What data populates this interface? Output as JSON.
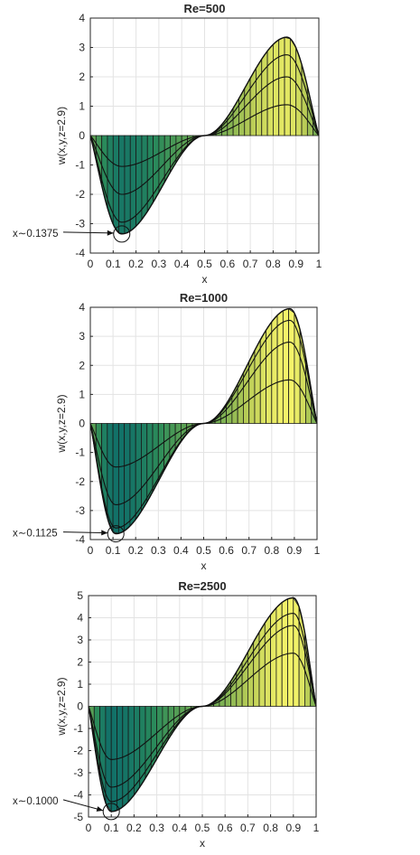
{
  "chart_data": [
    {
      "type": "area",
      "title": "Re=500",
      "xlabel": "x",
      "ylabel": "w(x,y,z=2.9)",
      "xlim": [
        0,
        1
      ],
      "ylim": [
        -4,
        4
      ],
      "xticks": [
        0,
        0.1,
        0.2,
        0.3,
        0.4,
        0.5,
        0.6,
        0.7,
        0.8,
        0.9,
        1
      ],
      "xticklabels": [
        "0",
        "0.1",
        "0.2",
        "0.3",
        "0.4",
        "0.5",
        "0.6",
        "0.7",
        "0.8",
        "0.9",
        "1"
      ],
      "yticks": [
        -4,
        -3,
        -2,
        -1,
        0,
        1,
        2,
        3,
        4
      ],
      "yticklabels": [
        "-4",
        "-3",
        "-2",
        "-1",
        "0",
        "1",
        "2",
        "3",
        "4"
      ],
      "grid": true,
      "min": {
        "x": 0.1375,
        "y": -3.35
      },
      "max": {
        "x": 0.86,
        "y": 3.35
      },
      "series": [
        {
          "values_x": [
            0,
            0.1375,
            0.5,
            0.86,
            1
          ],
          "values_y": [
            0,
            -3.35,
            0,
            3.35,
            0
          ]
        },
        {
          "values_x": [
            0,
            0.1375,
            0.5,
            0.86,
            1
          ],
          "values_y": [
            0,
            -2.95,
            0,
            2.75,
            0
          ]
        },
        {
          "values_x": [
            0,
            0.1375,
            0.5,
            0.86,
            1
          ],
          "values_y": [
            0,
            -2.0,
            0,
            2.0,
            0
          ]
        },
        {
          "values_x": [
            0,
            0.1375,
            0.5,
            0.86,
            1
          ],
          "values_y": [
            0,
            -1.05,
            0,
            1.05,
            0
          ]
        }
      ],
      "annotation": "x∼0.1375"
    },
    {
      "type": "area",
      "title": "Re=1000",
      "xlabel": "x",
      "ylabel": "w(x,y,z=2.9)",
      "xlim": [
        0,
        1
      ],
      "ylim": [
        -4,
        4
      ],
      "xticks": [
        0,
        0.1,
        0.2,
        0.3,
        0.4,
        0.5,
        0.6,
        0.7,
        0.8,
        0.9,
        1
      ],
      "xticklabels": [
        "0",
        "0.1",
        "0.2",
        "0.3",
        "0.4",
        "0.5",
        "0.6",
        "0.7",
        "0.8",
        "0.9",
        "1"
      ],
      "yticks": [
        -4,
        -3,
        -2,
        -1,
        0,
        1,
        2,
        3,
        4
      ],
      "yticklabels": [
        "-4",
        "-3",
        "-2",
        "-1",
        "0",
        "1",
        "2",
        "3",
        "4"
      ],
      "grid": true,
      "min": {
        "x": 0.1125,
        "y": -3.8
      },
      "max": {
        "x": 0.88,
        "y": 3.95
      },
      "series": [
        {
          "values_x": [
            0,
            0.1125,
            0.5,
            0.88,
            1
          ],
          "values_y": [
            0,
            -3.8,
            0,
            3.95,
            0
          ]
        },
        {
          "values_x": [
            0,
            0.1125,
            0.5,
            0.88,
            1
          ],
          "values_y": [
            0,
            -3.6,
            0,
            3.55,
            0
          ]
        },
        {
          "values_x": [
            0,
            0.1125,
            0.5,
            0.88,
            1
          ],
          "values_y": [
            0,
            -2.8,
            0,
            2.8,
            0
          ]
        },
        {
          "values_x": [
            0,
            0.1125,
            0.5,
            0.88,
            1
          ],
          "values_y": [
            0,
            -1.5,
            0,
            1.5,
            0
          ]
        }
      ],
      "annotation": "x∼0.1125"
    },
    {
      "type": "area",
      "title": "Re=2500",
      "xlabel": "x",
      "ylabel": "w(x,y,z=2.9)",
      "xlim": [
        0,
        1
      ],
      "ylim": [
        -5,
        5
      ],
      "xticks": [
        0,
        0.1,
        0.2,
        0.3,
        0.4,
        0.5,
        0.6,
        0.7,
        0.8,
        0.9,
        1
      ],
      "xticklabels": [
        "0",
        "0.1",
        "0.2",
        "0.3",
        "0.4",
        "0.5",
        "0.6",
        "0.7",
        "0.8",
        "0.9",
        "1"
      ],
      "yticks": [
        -5,
        -4,
        -3,
        -2,
        -1,
        0,
        1,
        2,
        3,
        4,
        5
      ],
      "yticklabels": [
        "-5",
        "-4",
        "-3",
        "-2",
        "-1",
        "0",
        "1",
        "2",
        "3",
        "4",
        "5"
      ],
      "grid": true,
      "min": {
        "x": 0.1,
        "y": -4.75
      },
      "max": {
        "x": 0.9,
        "y": 4.9
      },
      "series": [
        {
          "values_x": [
            0,
            0.1,
            0.5,
            0.9,
            1
          ],
          "values_y": [
            0,
            -4.75,
            0,
            4.9,
            0
          ]
        },
        {
          "values_x": [
            0,
            0.1,
            0.5,
            0.9,
            1
          ],
          "values_y": [
            0,
            -4.3,
            0,
            4.2,
            0
          ]
        },
        {
          "values_x": [
            0,
            0.1,
            0.5,
            0.9,
            1
          ],
          "values_y": [
            0,
            -3.65,
            0,
            3.65,
            0
          ]
        },
        {
          "values_x": [
            0,
            0.1,
            0.5,
            0.9,
            1
          ],
          "values_y": [
            0,
            -2.4,
            0,
            2.4,
            0
          ]
        }
      ],
      "annotation": "x∼0.1000"
    }
  ]
}
